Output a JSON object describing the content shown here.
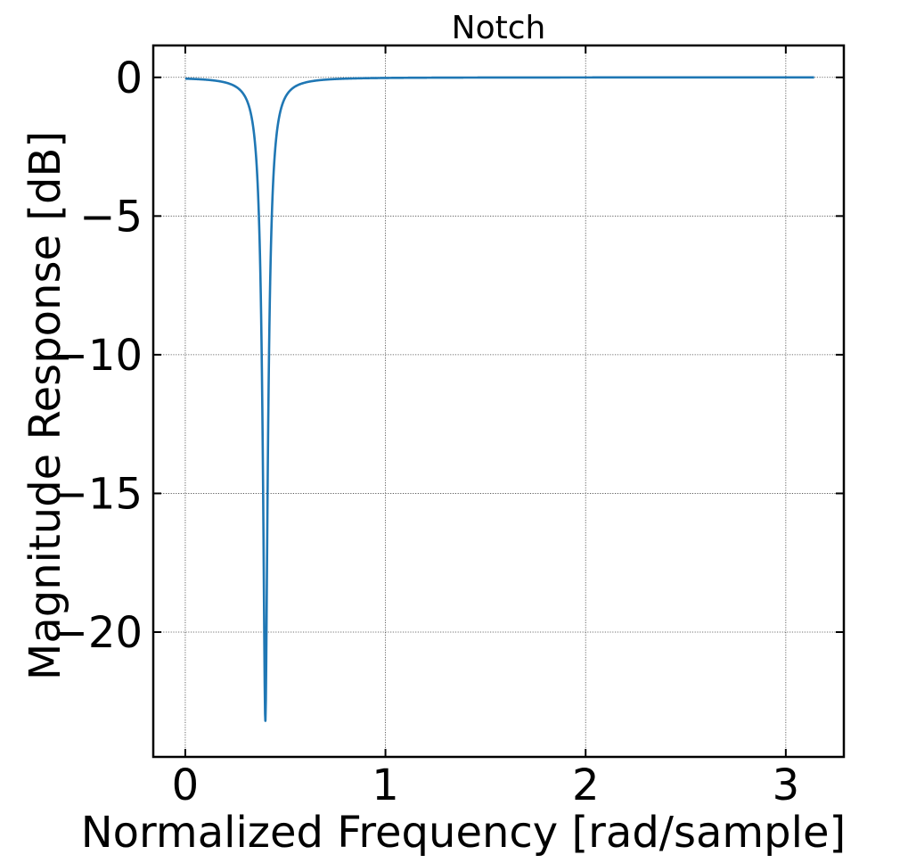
{
  "chart_data": {
    "type": "line",
    "title": "Notch",
    "xlabel": "Normalized Frequency [rad/sample]",
    "ylabel": "Magnitude Response [dB]",
    "xlim": [
      -0.16,
      3.29
    ],
    "ylim": [
      -24.5,
      1.15
    ],
    "xticks": [
      {
        "value": 0,
        "label": "0"
      },
      {
        "value": 1,
        "label": "1"
      },
      {
        "value": 2,
        "label": "2"
      },
      {
        "value": 3,
        "label": "3"
      }
    ],
    "yticks": [
      {
        "value": 0,
        "label": "0"
      },
      {
        "value": -5,
        "label": "−5"
      },
      {
        "value": -10,
        "label": "−10"
      },
      {
        "value": -15,
        "label": "−15"
      },
      {
        "value": -20,
        "label": "−20"
      }
    ],
    "grid": true,
    "line_color": "#1f77b4",
    "series": [
      {
        "name": "",
        "notch": {
          "center": 0.4,
          "depth_db": -23.2,
          "half_bandwidth": 0.008
        },
        "x_range": [
          0,
          3.1416
        ]
      }
    ]
  }
}
